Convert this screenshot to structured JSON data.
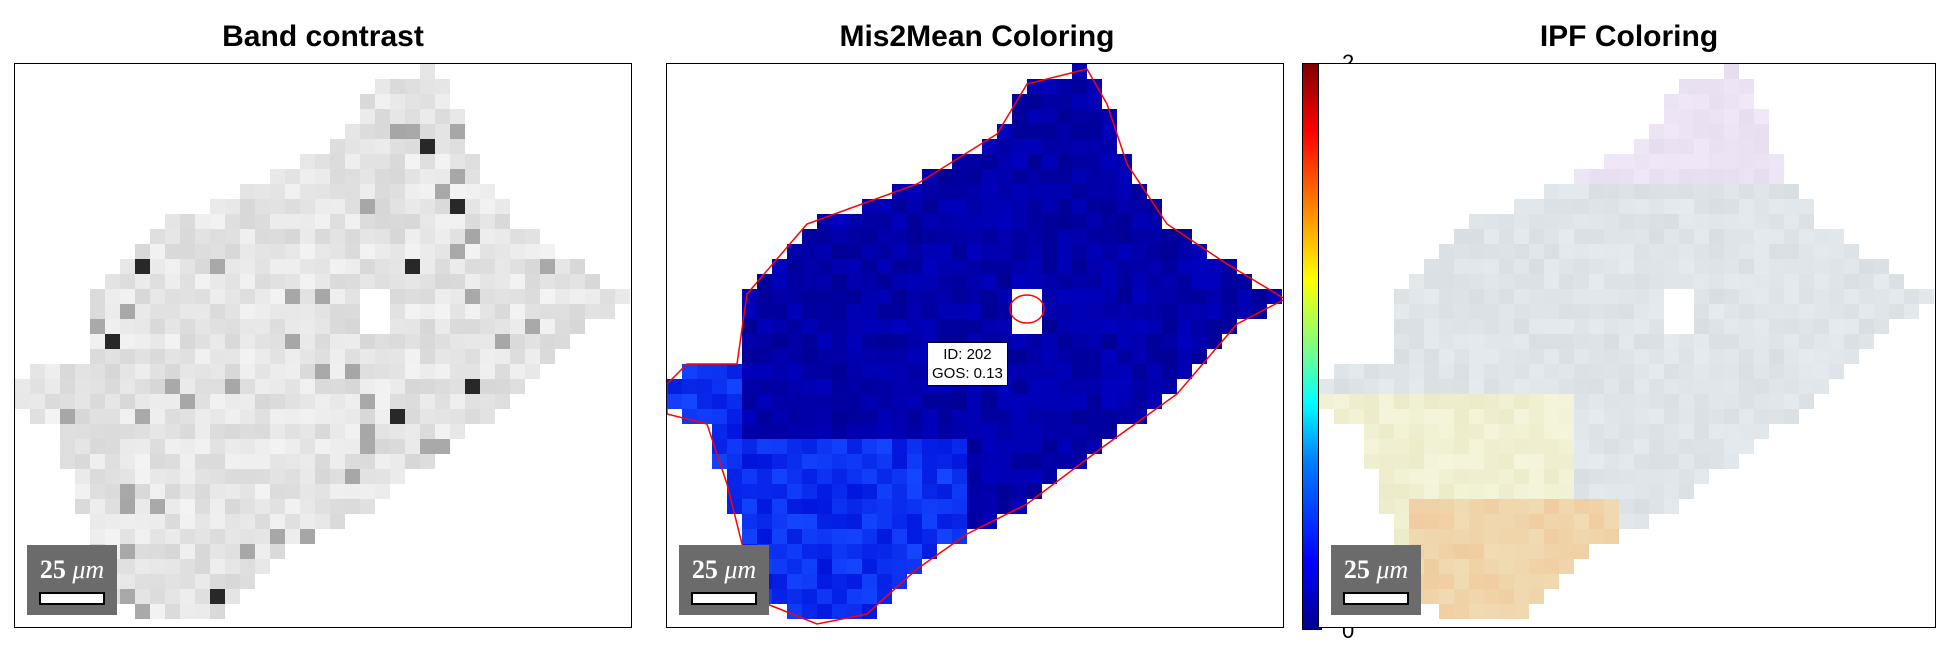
{
  "panels": [
    {
      "title": "Band contrast",
      "scale_label": "25",
      "scale_unit": "μm"
    },
    {
      "title": "Mis2Mean Coloring",
      "scale_label": "25",
      "scale_unit": "μm"
    },
    {
      "title": "IPF Coloring",
      "scale_label": "25",
      "scale_unit": "μm"
    }
  ],
  "tooltip": {
    "id_line": "ID: 202",
    "gos_line": "GOS: 0.13"
  },
  "colorbar": {
    "max": "2",
    "min": "0",
    "colormap": "jet"
  },
  "colors": {
    "boundary": "#ff0000",
    "scalebar_bg": "#6b6b6b",
    "mis2mean_fill": "#0000a8"
  }
}
